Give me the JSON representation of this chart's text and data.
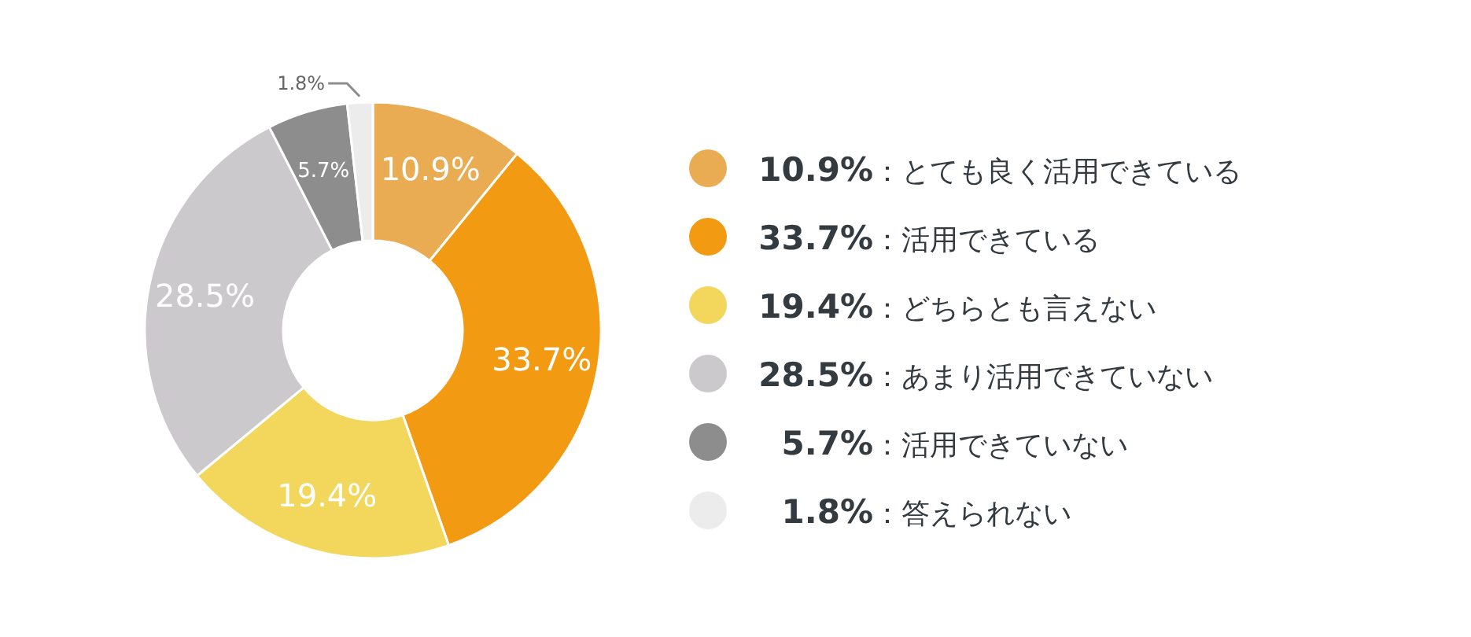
{
  "chart_data": {
    "type": "donut",
    "categories": [
      "**10.9%**：とても良く活用できている",
      "**33.7%**：活用できている",
      "**19.4%**：どちらとも言えない",
      "**28.5%**：あまり活用できていない",
      "**5.7%**：活用できていない",
      "**1.8%**：答えられない"
    ],
    "values": [
      10.9,
      33.7,
      19.4,
      28.5,
      5.7,
      1.8
    ],
    "colors": [
      "#e9ac52",
      "#f29a12",
      "#f3d65c",
      "#cbc9cb",
      "#8e8d8e",
      "#ececec"
    ],
    "value_labels": [
      "10.9%",
      "33.7%",
      "19.4%",
      "28.5%",
      "5.7%",
      "1.8%"
    ],
    "legend": "right"
  }
}
